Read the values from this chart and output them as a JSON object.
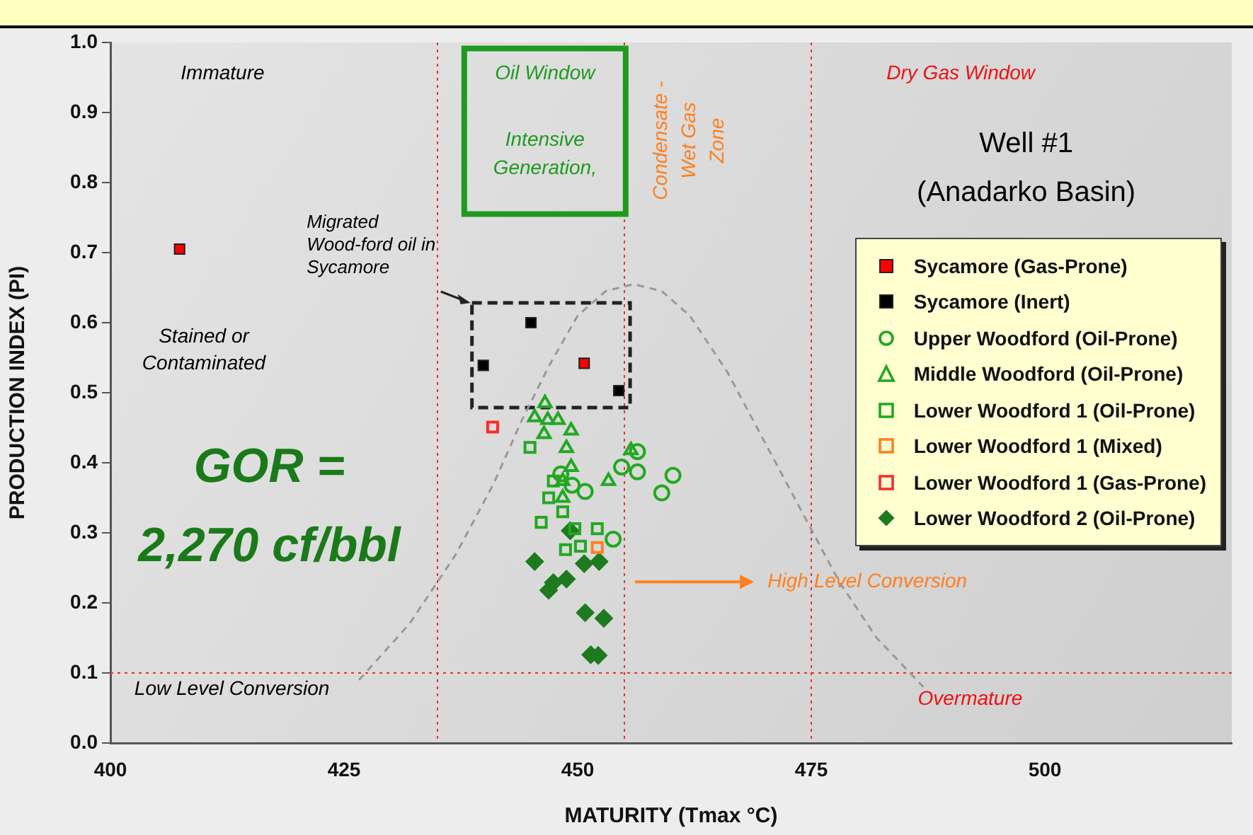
{
  "chart_data": {
    "type": "scatter",
    "xlabel": "MATURITY (Tmax °C)",
    "ylabel": "PRODUCTION INDEX (PI)",
    "xlim": [
      400,
      520
    ],
    "xticks": [
      400,
      425,
      450,
      475,
      500
    ],
    "ylim": [
      0,
      1
    ],
    "yticks": [
      {
        "value": 0,
        "label": "0.0"
      },
      0.1,
      0.2,
      0.3,
      0.4,
      0.5,
      0.6,
      0.7,
      0.8,
      0.9,
      {
        "value": 1,
        "label": "1.0"
      }
    ],
    "grid": false,
    "legend": "right",
    "series": [
      {
        "name": "Sycamore (Gas-Prone)",
        "color": "#ff0000",
        "marker": "square",
        "x": [
          407.4,
          450.7
        ],
        "values": [
          0.705,
          0.542
        ]
      },
      {
        "name": "Sycamore (Inert)",
        "color": "#000000",
        "marker": "square",
        "x": [
          445.0,
          439.9,
          454.4
        ],
        "values": [
          0.6,
          0.539,
          0.503
        ]
      },
      {
        "name": "Upper Woodford (Oil-Prone)",
        "color": "#22a822",
        "marker": "circle",
        "x": [
          456.4,
          454.7,
          456.4,
          460.2,
          459.0,
          450.8,
          448.2,
          449.4,
          453.8
        ],
        "values": [
          0.416,
          0.394,
          0.387,
          0.382,
          0.357,
          0.359,
          0.384,
          0.368,
          0.291
        ]
      },
      {
        "name": "Middle Woodford (Oil-Prone)",
        "color": "#22a822",
        "marker": "triangle",
        "x": [
          446.5,
          445.4,
          446.8,
          447.9,
          446.4,
          449.3,
          448.8,
          449.3,
          448.4,
          453.3,
          455.7,
          448.4
        ],
        "values": [
          0.485,
          0.465,
          0.461,
          0.461,
          0.441,
          0.446,
          0.421,
          0.394,
          0.374,
          0.374,
          0.418,
          0.35
        ]
      },
      {
        "name": "Lower Woodford 1 (Oil-Prone)",
        "color": "#22a822",
        "marker": "square",
        "x": [
          444.9,
          447.4,
          446.9,
          448.4,
          446.1,
          449.7,
          452.1,
          448.7,
          450.3
        ],
        "values": [
          0.422,
          0.374,
          0.35,
          0.33,
          0.315,
          0.306,
          0.306,
          0.276,
          0.281
        ]
      },
      {
        "name": "Lower Woodford 1 (Mixed)",
        "color": "#ff7f1e",
        "marker": "square",
        "x": [
          452.1
        ],
        "values": [
          0.279
        ]
      },
      {
        "name": "Lower Woodford 1 (Gas-Prone)",
        "color": "#ff2a2a",
        "marker": "square",
        "x": [
          440.9
        ],
        "values": [
          0.451
        ]
      },
      {
        "name": "Lower Woodford 2 (Oil-Prone)",
        "color": "#1e7a1e",
        "marker": "diamond",
        "x": [
          449.2,
          445.4,
          447.4,
          446.9,
          448.8,
          450.7,
          452.3,
          450.8,
          452.8,
          451.4,
          452.2
        ],
        "values": [
          0.303,
          0.259,
          0.229,
          0.218,
          0.234,
          0.256,
          0.259,
          0.186,
          0.178,
          0.126,
          0.125
        ]
      },
      {
        "type": "line",
        "color": "#999999",
        "marker": "none",
        "line_style": "dashed",
        "x": [
          426.6,
          432,
          437,
          441,
          444,
          447,
          450,
          453,
          456,
          459,
          462,
          466,
          470,
          474,
          478,
          482,
          487
        ],
        "values": [
          0.09,
          0.17,
          0.27,
          0.37,
          0.46,
          0.54,
          0.61,
          0.645,
          0.655,
          0.645,
          0.61,
          0.53,
          0.43,
          0.33,
          0.23,
          0.15,
          0.08
        ]
      }
    ],
    "ref_lines": [
      {
        "axis": "x",
        "value": 435,
        "color": "#e83030",
        "line_style": "dotted"
      },
      {
        "axis": "x",
        "value": 455,
        "color": "#e83030",
        "line_style": "dotted"
      },
      {
        "axis": "x",
        "value": 475,
        "color": "#e83030",
        "line_style": "dotted"
      },
      {
        "axis": "y",
        "value": 0.1,
        "color": "#e83030",
        "line_style": "dotted"
      }
    ],
    "annotations": [
      "Immature",
      "Oil Window",
      "Intensive Generation,",
      "Condensate - Wet Gas Zone",
      "Dry Gas Window",
      "Well #1",
      "(Anadarko Basin)",
      "Migrated Wood-ford oil in Sycamore",
      "Stained or Contaminated",
      "GOR = 2,270 cf/bbl",
      "High Level Conversion",
      "Low Level Conversion",
      "Overmature"
    ]
  }
}
